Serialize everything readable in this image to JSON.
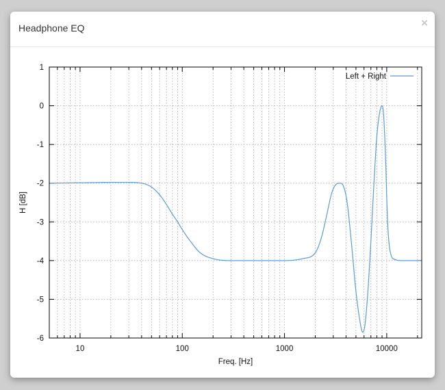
{
  "dialog": {
    "title": "Headphone EQ",
    "close_label": "×"
  },
  "chart_data": {
    "type": "line",
    "xlabel": "Freq. [Hz]",
    "ylabel": "H [dB]",
    "xscale": "log",
    "xlim": [
      5,
      22000
    ],
    "ylim": [
      -6,
      1
    ],
    "x_ticks": [
      10,
      100,
      1000,
      10000
    ],
    "x_tick_labels": [
      "10",
      "100",
      "1000",
      "10000"
    ],
    "y_ticks": [
      1,
      0,
      -1,
      -2,
      -3,
      -4,
      -5,
      -6
    ],
    "y_tick_labels": [
      "1",
      "0",
      "-1",
      "-2",
      "-3",
      "-4",
      "-5",
      "-6"
    ],
    "grid": true,
    "legend": "top-right",
    "series": [
      {
        "name": "Left + Right",
        "color": "#5b9bd5",
        "x": [
          5,
          10,
          20,
          30,
          40,
          50,
          60,
          70,
          80,
          90,
          100,
          120,
          150,
          200,
          300,
          500,
          1000,
          1500,
          2000,
          2300,
          2600,
          2900,
          3200,
          3500,
          3800,
          4100,
          4500,
          5000,
          5500,
          5800,
          6100,
          6500,
          7000,
          7500,
          8000,
          8500,
          9000,
          9300,
          9700,
          10200,
          11000,
          12000,
          14000,
          17000,
          22000
        ],
        "y": [
          -2.0,
          -1.99,
          -1.98,
          -1.98,
          -2.0,
          -2.1,
          -2.3,
          -2.55,
          -2.8,
          -3.0,
          -3.2,
          -3.5,
          -3.8,
          -3.95,
          -4.0,
          -4.0,
          -4.0,
          -3.95,
          -3.8,
          -3.4,
          -2.8,
          -2.25,
          -2.03,
          -2.0,
          -2.1,
          -2.5,
          -3.5,
          -4.8,
          -5.6,
          -5.85,
          -5.7,
          -4.9,
          -3.5,
          -2.0,
          -0.8,
          -0.2,
          0.0,
          -0.2,
          -1.2,
          -3.0,
          -3.85,
          -3.97,
          -4.0,
          -4.0,
          -4.0
        ]
      }
    ]
  }
}
